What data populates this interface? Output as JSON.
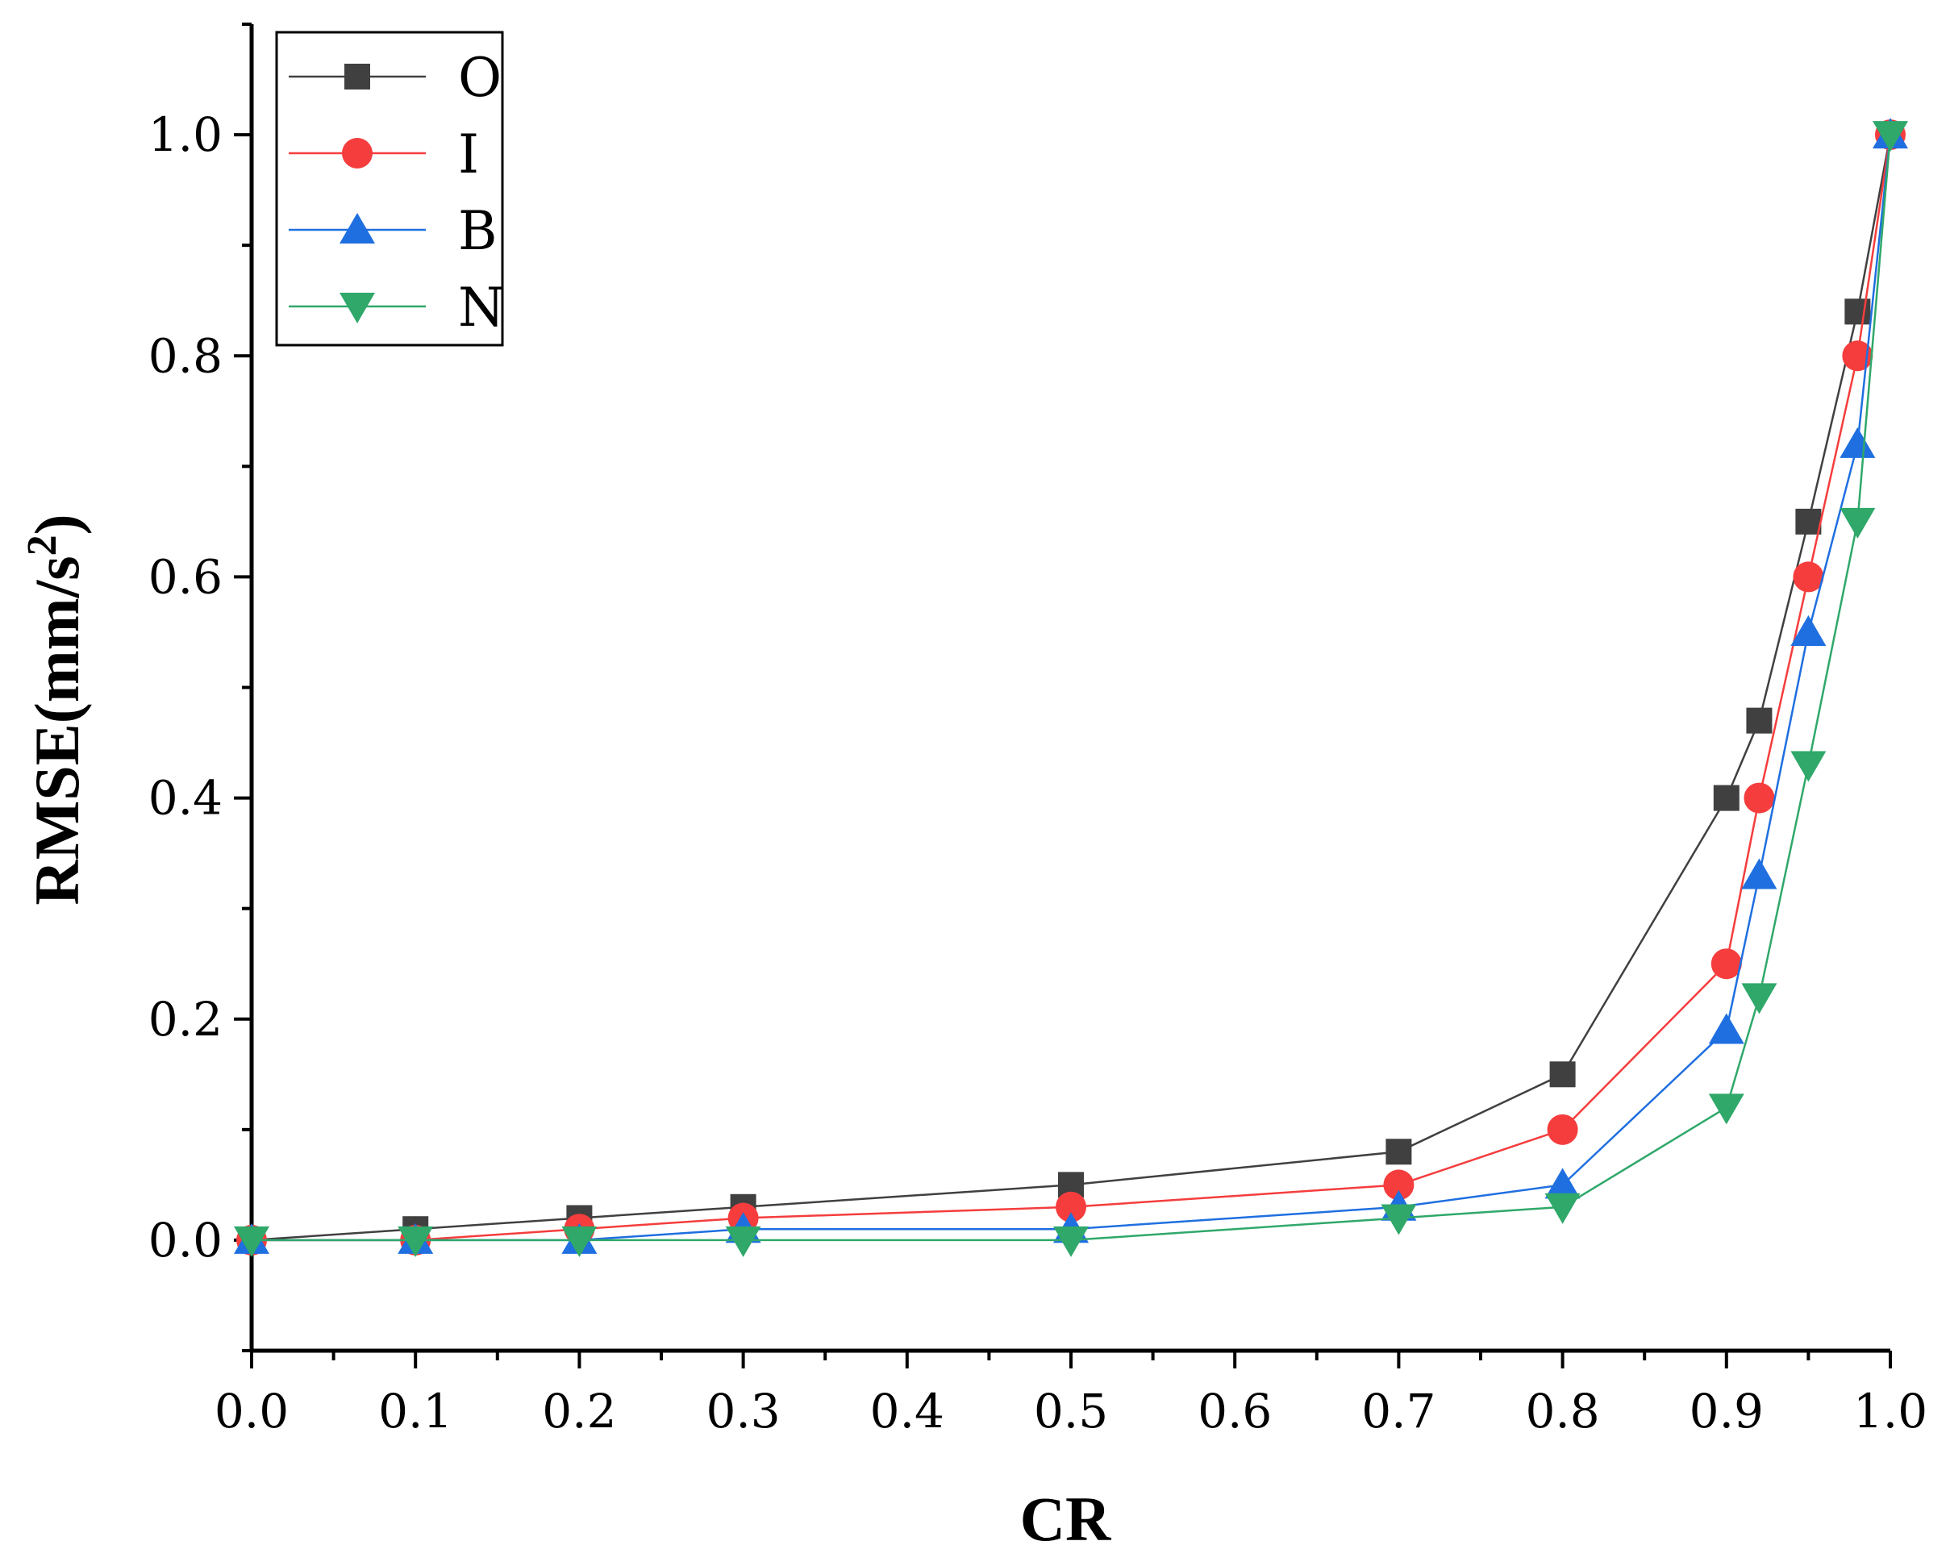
{
  "chart_data": {
    "type": "line",
    "xlabel": "CR",
    "ylabel_main": "RMSE(mm/s",
    "ylabel_sup": "2",
    "ylabel_end": ")",
    "xlim": [
      0.0,
      1.0
    ],
    "ylim": [
      -0.1,
      1.1
    ],
    "x_ticks": [
      0.0,
      0.1,
      0.2,
      0.3,
      0.4,
      0.5,
      0.6,
      0.7,
      0.8,
      0.9,
      1.0
    ],
    "x_tick_labels": [
      "0.0",
      "0.1",
      "0.2",
      "0.3",
      "0.4",
      "0.5",
      "0.6",
      "0.7",
      "0.8",
      "0.9",
      "1.0"
    ],
    "y_ticks": [
      0.0,
      0.2,
      0.4,
      0.6,
      0.8,
      1.0
    ],
    "y_tick_labels": [
      "0.0",
      "0.2",
      "0.4",
      "0.6",
      "0.8",
      "1.0"
    ],
    "legend_position": "top-left",
    "x": [
      0.0,
      0.1,
      0.2,
      0.3,
      0.5,
      0.7,
      0.8,
      0.9,
      0.92,
      0.95,
      0.98,
      1.0
    ],
    "series": [
      {
        "name": "O",
        "color": "#404040",
        "marker": "square",
        "values": [
          0.0,
          0.01,
          0.02,
          0.03,
          0.05,
          0.08,
          0.15,
          0.4,
          0.47,
          0.65,
          0.84,
          1.0
        ]
      },
      {
        "name": "I",
        "color": "#f53d3d",
        "marker": "circle",
        "values": [
          0.0,
          0.0,
          0.01,
          0.02,
          0.03,
          0.05,
          0.1,
          0.25,
          0.4,
          0.6,
          0.8,
          1.0
        ]
      },
      {
        "name": "B",
        "color": "#1f6fe0",
        "marker": "triangle-up",
        "values": [
          0.0,
          0.0,
          0.0,
          0.01,
          0.01,
          0.03,
          0.05,
          0.19,
          0.33,
          0.55,
          0.72,
          1.0
        ]
      },
      {
        "name": "N",
        "color": "#2fa86a",
        "marker": "triangle-down",
        "values": [
          0.0,
          0.0,
          0.0,
          0.0,
          0.0,
          0.02,
          0.03,
          0.12,
          0.22,
          0.43,
          0.65,
          1.0
        ]
      }
    ]
  }
}
